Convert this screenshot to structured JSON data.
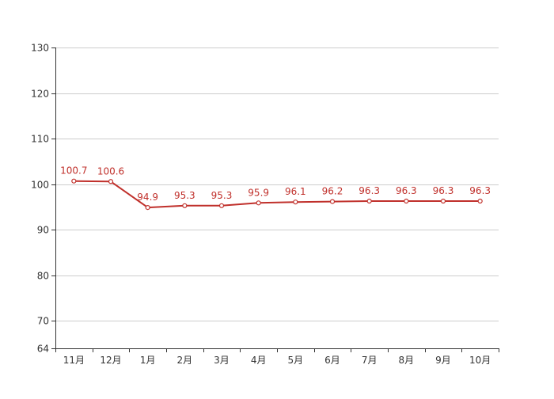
{
  "chart_data": {
    "type": "line",
    "title": "",
    "xlabel": "",
    "ylabel": "",
    "categories": [
      "11月",
      "12月",
      "1月",
      "2月",
      "3月",
      "4月",
      "5月",
      "6月",
      "7月",
      "8月",
      "9月",
      "10月"
    ],
    "series": [
      {
        "values": [
          100.7,
          100.6,
          94.9,
          95.3,
          95.3,
          95.9,
          96.1,
          96.2,
          96.3,
          96.3,
          96.3,
          96.3
        ],
        "value_labels": [
          "100.7",
          "100.6",
          "94.9",
          "95.3",
          "95.3",
          "95.9",
          "96.1",
          "96.2",
          "96.3",
          "96.3",
          "96.3",
          "96.3"
        ]
      }
    ],
    "ylim": [
      64,
      130
    ],
    "yticks": [
      64,
      70,
      80,
      90,
      100,
      110,
      120,
      130
    ],
    "ytick_labels": [
      "64",
      "70",
      "80",
      "90",
      "100",
      "110",
      "120",
      "130"
    ],
    "grid": true,
    "colors": {
      "line": "#c0302b",
      "label": "#c0302b",
      "grid": "#cccccc",
      "axis": "#333333",
      "tick_text": "#333333"
    }
  }
}
